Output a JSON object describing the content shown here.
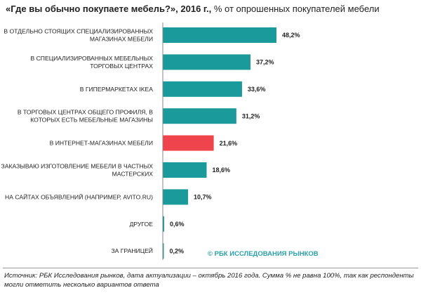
{
  "title_bold": "«Где вы обычно покупаете мебель?», 2016 г.,",
  "title_rest": " % от опрошенных покупателей мебели",
  "copyright": "© РБК ИССЛЕДОВАНИЯ РЫНКОВ",
  "source": "Источник: РБК Исследования рынков, дата актуализации – октябрь 2016 года. Сумма % не равна 100%, так как респонденты могли отметить несколько вариантов ответа",
  "colors": {
    "bar": "#1a9a9a",
    "highlight": "#f0444c",
    "axis": "#888888"
  },
  "chart_data": {
    "type": "bar",
    "orientation": "horizontal",
    "title": "«Где вы обычно покупаете мебель?», 2016 г., % от опрошенных покупателей мебели",
    "categories": [
      [
        "В ОТДЕЛЬНО СТОЯЩИХ СПЕЦИАЛИЗИРОВАННЫХ",
        "МАГАЗИНАХ МЕБЕЛИ"
      ],
      [
        "В СПЕЦИАЛИЗИРОВАННЫХ МЕБЕЛЬНЫХ",
        "ТОРГОВЫХ ЦЕНТРАХ"
      ],
      [
        "В ГИПЕРМАРКЕТАХ IKEA"
      ],
      [
        "В ТОРГОВЫХ ЦЕНТРАХ ОБЩЕГО ПРОФИЛЯ, В",
        "КОТОРЫХ ЕСТЬ МЕБЕЛЬНЫЕ МАГАЗИНЫ"
      ],
      [
        "В ИНТЕРНЕТ-МАГАЗИНАХ МЕБЕЛИ"
      ],
      [
        "ЗАКАЗЫВАЮ ИЗГОТОВЛЕНИЕ МЕБЕЛИ В ЧАСТНЫХ",
        "МАСТЕРСКИХ"
      ],
      [
        "НА САЙТАХ ОБЪЯВЛЕНИЙ (НАПРИМЕР, AVITO.RU)"
      ],
      [
        "ДРУГОЕ"
      ],
      [
        "ЗА ГРАНИЦЕЙ"
      ]
    ],
    "values": [
      48.2,
      37.2,
      33.6,
      31.2,
      21.6,
      18.6,
      10.7,
      0.6,
      0.2
    ],
    "value_labels": [
      "48,2%",
      "37,2%",
      "33,6%",
      "31,2%",
      "21,6%",
      "18,6%",
      "10,7%",
      "0,6%",
      "0,2%"
    ],
    "highlight_index": 4,
    "xlim": [
      0,
      48.2
    ],
    "grid": false,
    "legend": "none"
  }
}
